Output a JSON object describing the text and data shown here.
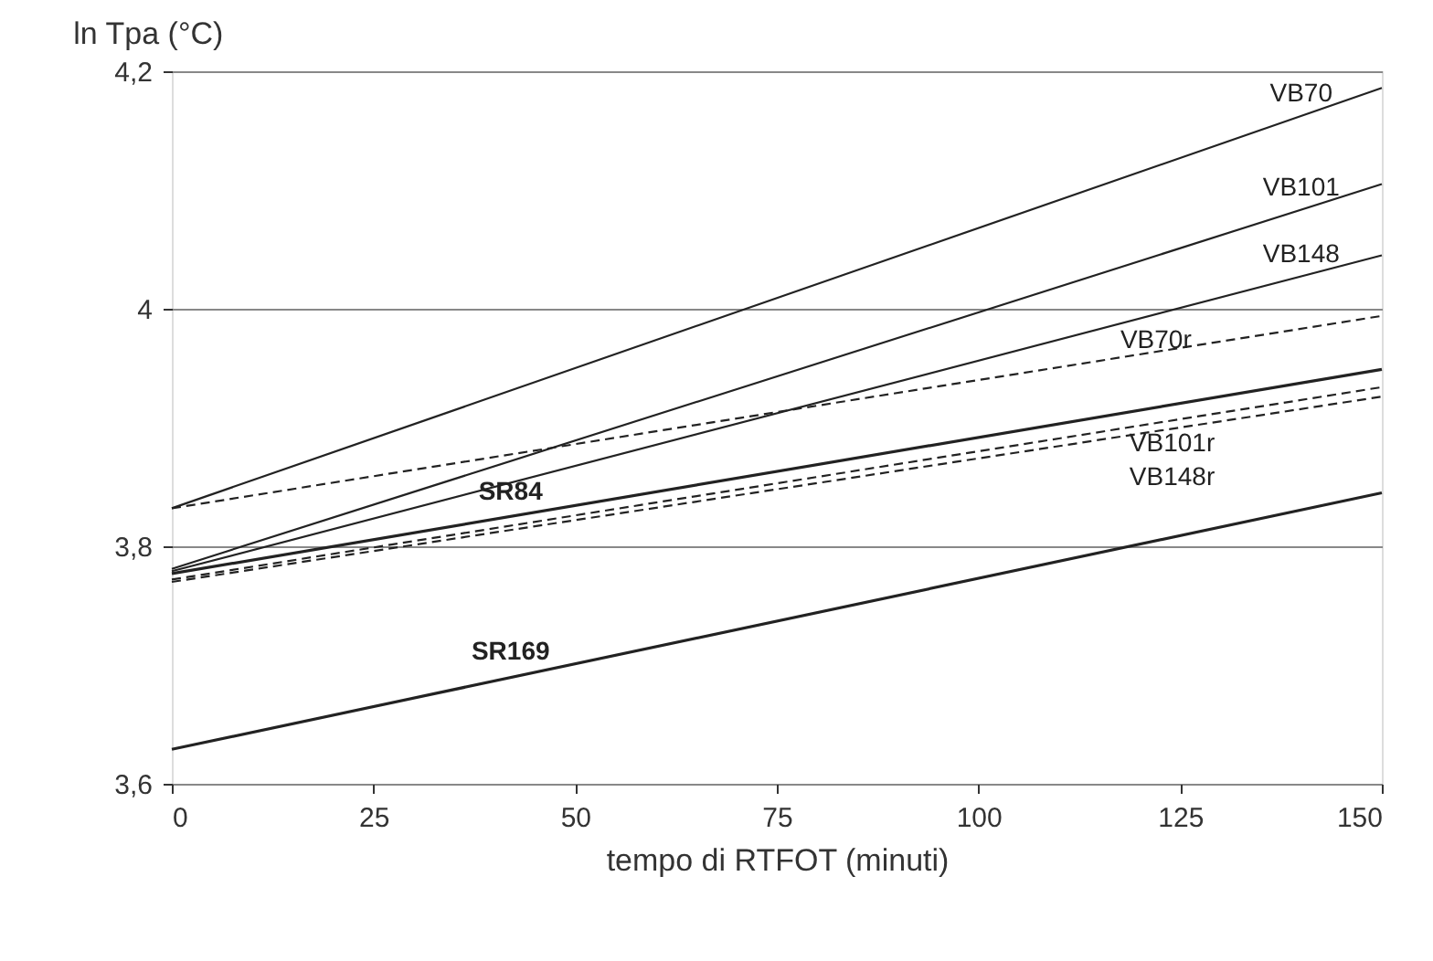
{
  "chart_data": {
    "type": "line",
    "ylabel": "ln Tpa (°C)",
    "xlabel": "tempo di RTFOT (minuti)",
    "x": [
      0,
      150
    ],
    "series": [
      {
        "name": "VB70",
        "color": "#222222",
        "values": [
          3.832,
          4.186
        ],
        "line_style": "solid"
      },
      {
        "name": "VB101",
        "color": "#222222",
        "values": [
          3.781,
          4.105
        ],
        "line_style": "solid"
      },
      {
        "name": "VB148",
        "color": "#222222",
        "values": [
          3.779,
          4.045
        ],
        "line_style": "solid"
      },
      {
        "name": "VB70r",
        "color": "#222222",
        "values": [
          3.832,
          3.994
        ],
        "line_style": "dashed"
      },
      {
        "name": "SR84",
        "color": "#222222",
        "values": [
          3.777,
          3.949
        ],
        "line_style": "solid"
      },
      {
        "name": "VB101r",
        "color": "#222222",
        "values": [
          3.772,
          3.934
        ],
        "line_style": "dashed"
      },
      {
        "name": "VB148r",
        "color": "#222222",
        "values": [
          3.77,
          3.926
        ],
        "line_style": "dashed"
      },
      {
        "name": "SR169",
        "color": "#222222",
        "values": [
          3.629,
          3.845
        ],
        "line_style": "solid"
      }
    ],
    "xlim": [
      0,
      150
    ],
    "xticks": [
      0,
      25,
      50,
      75,
      100,
      125,
      150
    ],
    "ylim": [
      3.6,
      4.2
    ],
    "yticks": [
      {
        "value": 3.6,
        "label": "3,6"
      },
      {
        "value": 3.8,
        "label": "3,8"
      },
      {
        "value": 4,
        "label": "4"
      },
      {
        "value": 4.2,
        "label": "4,2"
      }
    ],
    "grid": "y",
    "marker": "none"
  }
}
